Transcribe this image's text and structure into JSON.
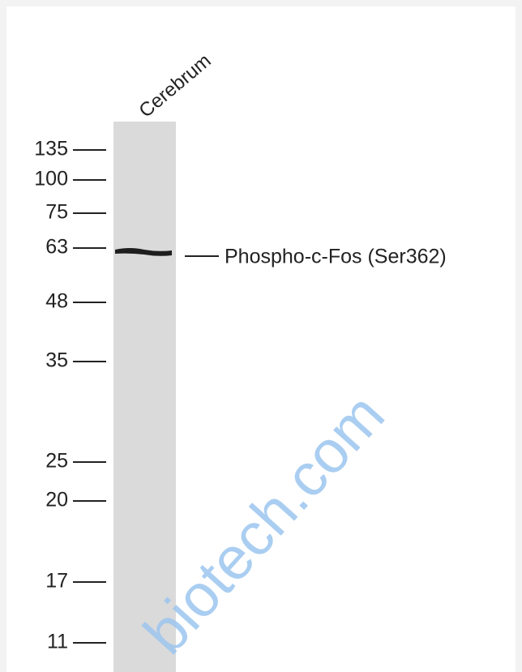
{
  "lane_label": "Cerebrum",
  "markers": [
    135,
    100,
    75,
    63,
    48,
    35,
    25,
    20,
    17,
    11
  ],
  "band_label": "Phospho-c-Fos (Ser362)",
  "watermark": "biotech.com"
}
